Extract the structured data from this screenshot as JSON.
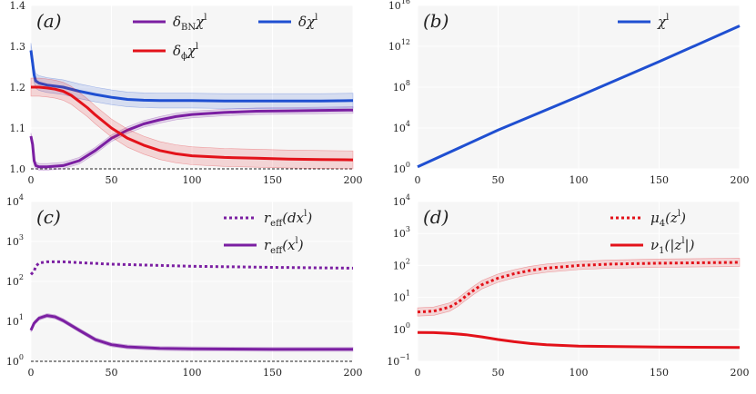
{
  "chart_data": [
    {
      "id": "a",
      "type": "line",
      "panel_label": "(a)",
      "yscale": "linear",
      "xlim": [
        0,
        200
      ],
      "ylim": [
        1.0,
        1.4
      ],
      "x_ticks": [
        0,
        50,
        100,
        150,
        200
      ],
      "x_tick_labels": [
        "0",
        "50",
        "100",
        "150",
        "200"
      ],
      "y_ticks": [
        1.0,
        1.1,
        1.2,
        1.3,
        1.4
      ],
      "y_tick_labels": [
        "1.0",
        "1.1",
        "1.2",
        "1.3",
        "1.4"
      ],
      "legend_position": "top",
      "reference_line": 1.0,
      "series": [
        {
          "name": "delta_BN chi^l",
          "legend_parts": {
            "main": "δ",
            "sub": "BN",
            "post": "χ",
            "sup": "l"
          },
          "color": "#7b1fa2",
          "style": "solid",
          "x": [
            0,
            1,
            2,
            3,
            5,
            10,
            20,
            30,
            40,
            50,
            60,
            70,
            80,
            90,
            100,
            120,
            140,
            160,
            180,
            200
          ],
          "y": [
            1.08,
            1.06,
            1.02,
            1.008,
            1.005,
            1.005,
            1.008,
            1.02,
            1.045,
            1.075,
            1.095,
            1.11,
            1.12,
            1.128,
            1.133,
            1.138,
            1.141,
            1.142,
            1.143,
            1.144
          ],
          "band": 0.008
        },
        {
          "name": "delta chi^l",
          "legend_parts": {
            "main": "δχ",
            "sup": "l"
          },
          "color": "#1f4fd1",
          "style": "solid",
          "x": [
            0,
            1,
            2,
            3,
            5,
            10,
            20,
            30,
            40,
            50,
            60,
            70,
            80,
            100,
            120,
            140,
            160,
            180,
            200
          ],
          "y": [
            1.29,
            1.26,
            1.23,
            1.215,
            1.21,
            1.205,
            1.2,
            1.19,
            1.182,
            1.175,
            1.17,
            1.168,
            1.167,
            1.167,
            1.166,
            1.166,
            1.166,
            1.166,
            1.167
          ],
          "band": 0.018
        },
        {
          "name": "delta_phi chi^l",
          "legend_parts": {
            "main": "δ",
            "sub": "ϕ",
            "post": "χ",
            "sup": "l"
          },
          "color": "#e3121a",
          "style": "solid",
          "x": [
            0,
            5,
            10,
            15,
            20,
            25,
            30,
            35,
            40,
            50,
            60,
            70,
            80,
            90,
            100,
            120,
            140,
            160,
            180,
            200
          ],
          "y": [
            1.2,
            1.2,
            1.198,
            1.195,
            1.19,
            1.18,
            1.165,
            1.15,
            1.132,
            1.1,
            1.075,
            1.058,
            1.045,
            1.037,
            1.032,
            1.028,
            1.026,
            1.024,
            1.023,
            1.022
          ],
          "band": 0.022
        }
      ]
    },
    {
      "id": "b",
      "type": "line",
      "panel_label": "(b)",
      "yscale": "log",
      "xlim": [
        0,
        200
      ],
      "ylim_exp": [
        0,
        16
      ],
      "x_ticks": [
        0,
        50,
        100,
        150,
        200
      ],
      "x_tick_labels": [
        "0",
        "50",
        "100",
        "150",
        "200"
      ],
      "y_tick_exp": [
        0,
        4,
        8,
        12,
        16
      ],
      "y_tick_labels": [
        "10",
        "10",
        "10",
        "10",
        "10"
      ],
      "y_tick_sups": [
        "0",
        "4",
        "8",
        "12",
        "16"
      ],
      "legend_position": "top-right",
      "series": [
        {
          "name": "chi^l",
          "legend_parts": {
            "main": "χ",
            "sup": "l"
          },
          "color": "#1f4fd1",
          "style": "solid",
          "x": [
            0,
            50,
            100,
            150,
            200
          ],
          "y_exp": [
            0.2,
            3.8,
            7.1,
            10.5,
            14.0
          ]
        }
      ]
    },
    {
      "id": "c",
      "type": "line",
      "panel_label": "(c)",
      "yscale": "log",
      "xlim": [
        0,
        200
      ],
      "ylim_exp": [
        0,
        4
      ],
      "x_ticks": [
        0,
        50,
        100,
        150,
        200
      ],
      "x_tick_labels": [
        "0",
        "50",
        "100",
        "150",
        "200"
      ],
      "y_tick_exp": [
        0,
        1,
        2,
        3,
        4
      ],
      "y_tick_labels": [
        "10",
        "10",
        "10",
        "10",
        "10"
      ],
      "y_tick_sups": [
        "0",
        "1",
        "2",
        "3",
        "4"
      ],
      "legend_position": "top-right",
      "reference_line_exp": 0,
      "series": [
        {
          "name": "r_eff(dx^l)",
          "legend_parts": {
            "main": "r",
            "sub": "eff",
            "post": "(dx",
            "sup": "l",
            "tail": ")"
          },
          "color": "#7b1fa2",
          "style": "dotted",
          "x": [
            0,
            2,
            3,
            5,
            10,
            20,
            30,
            50,
            100,
            150,
            200
          ],
          "y": [
            150,
            180,
            240,
            290,
            310,
            310,
            295,
            270,
            240,
            225,
            215
          ]
        },
        {
          "name": "r_eff(x^l)",
          "legend_parts": {
            "main": "r",
            "sub": "eff",
            "post": "(x",
            "sup": "l",
            "tail": ")"
          },
          "color": "#7b1fa2",
          "style": "solid",
          "x": [
            0,
            2,
            5,
            10,
            15,
            20,
            30,
            40,
            50,
            60,
            80,
            100,
            150,
            200
          ],
          "y": [
            6,
            9,
            12,
            14,
            13,
            10.5,
            6,
            3.5,
            2.6,
            2.3,
            2.1,
            2.05,
            2.0,
            2.0
          ],
          "band_factor": 1.12
        }
      ]
    },
    {
      "id": "d",
      "type": "line",
      "panel_label": "(d)",
      "yscale": "log",
      "xlim": [
        0,
        200
      ],
      "ylim_exp": [
        -1,
        4
      ],
      "x_ticks": [
        0,
        50,
        100,
        150,
        200
      ],
      "x_tick_labels": [
        "0",
        "50",
        "100",
        "150",
        "200"
      ],
      "y_tick_exp": [
        -1,
        0,
        1,
        2,
        3,
        4
      ],
      "y_tick_labels": [
        "10",
        "10",
        "10",
        "10",
        "10",
        "10"
      ],
      "y_tick_sups": [
        "−1",
        "0",
        "1",
        "2",
        "3",
        "4"
      ],
      "legend_position": "top-right",
      "series": [
        {
          "name": "mu_4(z^l)",
          "legend_parts": {
            "main": "μ",
            "sub": "4",
            "post": "(z",
            "sup": "l",
            "tail": ")"
          },
          "color": "#e3121a",
          "style": "dotted",
          "x": [
            0,
            10,
            20,
            25,
            30,
            35,
            40,
            50,
            60,
            70,
            80,
            100,
            120,
            150,
            200
          ],
          "y": [
            3.5,
            3.7,
            5,
            7,
            11,
            17,
            25,
            40,
            55,
            70,
            82,
            100,
            110,
            118,
            125
          ],
          "band_factor": 1.35
        },
        {
          "name": "nu_1(|z^l|)",
          "legend_parts": {
            "main": "ν",
            "sub": "1",
            "post": "(|z",
            "sup": "l",
            "tail": "|)"
          },
          "color": "#e3121a",
          "style": "solid",
          "x": [
            0,
            10,
            20,
            30,
            40,
            50,
            60,
            70,
            80,
            100,
            150,
            200
          ],
          "y": [
            0.8,
            0.79,
            0.75,
            0.68,
            0.58,
            0.48,
            0.41,
            0.36,
            0.33,
            0.3,
            0.28,
            0.27
          ]
        }
      ]
    }
  ]
}
